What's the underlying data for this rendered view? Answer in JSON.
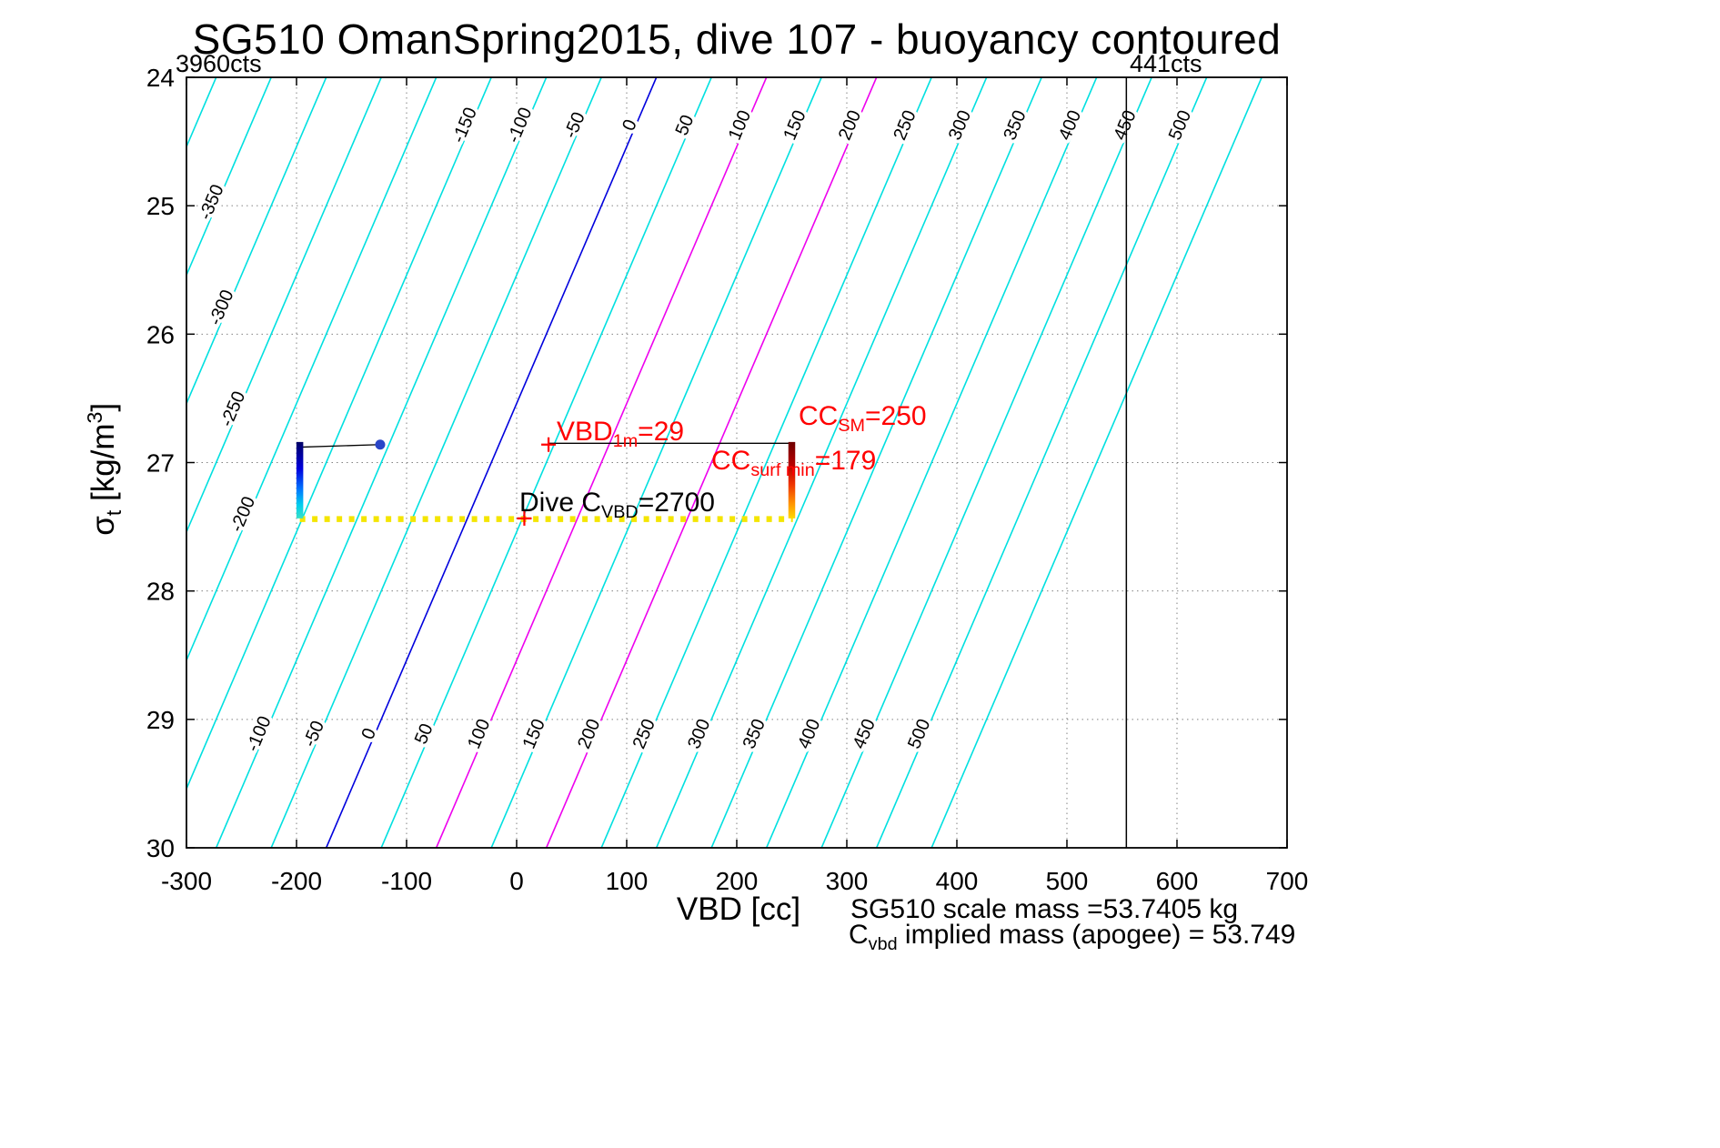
{
  "title": "SG510 OmanSpring2015, dive 107 - buoyancy contoured",
  "corner": {
    "left": "3960cts",
    "right": "441cts"
  },
  "axes": {
    "x_label": "VBD [cc]"
  },
  "ylabel": {
    "sigma": "σ",
    "sub": "t",
    "mid": " [kg/m",
    "sup": "3",
    "post": "]"
  },
  "annotations": {
    "vbd1m": {
      "pre": "VBD",
      "sub": "1m",
      "post": "=29"
    },
    "ccsm": {
      "pre": "CC",
      "sub": "SM",
      "post": "=250"
    },
    "ccsurf": {
      "pre": "CC",
      "sub": "surf min",
      "post": "=179"
    },
    "dive": {
      "pre": "Dive C",
      "sub": "VBD",
      "post": "=2700"
    }
  },
  "footer": {
    "line1": "SG510 scale mass =53.7405 kg",
    "line2": {
      "pre": "C",
      "sub": "vbd",
      "post": " implied mass (apogee) = 53.749"
    }
  },
  "chart_data": {
    "type": "line",
    "subtype": "buoyancy-contour-overlay",
    "title": "SG510 OmanSpring2015, dive 107 - buoyancy contoured",
    "xlabel": "VBD [cc]",
    "ylabel": "sigma_t [kg/m^3]",
    "x": {
      "min": -300,
      "max": 700,
      "ticks": [
        -300,
        -200,
        -100,
        0,
        100,
        200,
        300,
        400,
        500,
        600,
        700
      ]
    },
    "y": {
      "min": 24,
      "max": 30,
      "ticks": [
        24,
        25,
        26,
        27,
        28,
        29,
        30
      ],
      "inverted_axis": true
    },
    "grid": true,
    "contours": {
      "description": "straight buoyancy contour lines; VBD(sigma) = level + offset + slope*(sigma-24)",
      "model": {
        "offset": 127,
        "slope": -50
      },
      "colors": {
        "default": "#00e0e0",
        "0": "#0000dd",
        "100": "#ee00ee",
        "200": "#ee00ee"
      },
      "label_rotation_deg": -67,
      "levels": [
        {
          "c": -400,
          "label_sigmas": []
        },
        {
          "c": -350,
          "label_sigmas": [
            24.99
          ]
        },
        {
          "c": -300,
          "label_sigmas": [
            25.81
          ]
        },
        {
          "c": -250,
          "label_sigmas": [
            26.6
          ]
        },
        {
          "c": -200,
          "label_sigmas": [
            27.42
          ]
        },
        {
          "c": -150,
          "label_sigmas": [
            24.39
          ]
        },
        {
          "c": -100,
          "label_sigmas": [
            24.39,
            29.13
          ]
        },
        {
          "c": -50,
          "label_sigmas": [
            24.39,
            29.13
          ]
        },
        {
          "c": 0,
          "label_sigmas": [
            24.39,
            29.13
          ]
        },
        {
          "c": 50,
          "label_sigmas": [
            24.39,
            29.13
          ]
        },
        {
          "c": 100,
          "label_sigmas": [
            24.39,
            29.13
          ]
        },
        {
          "c": 150,
          "label_sigmas": [
            24.39,
            29.13
          ]
        },
        {
          "c": 200,
          "label_sigmas": [
            24.39,
            29.13
          ]
        },
        {
          "c": 250,
          "label_sigmas": [
            24.39,
            29.13
          ]
        },
        {
          "c": 300,
          "label_sigmas": [
            24.39,
            29.13
          ]
        },
        {
          "c": 350,
          "label_sigmas": [
            24.39,
            29.13
          ]
        },
        {
          "c": 400,
          "label_sigmas": [
            24.39,
            29.13
          ]
        },
        {
          "c": 450,
          "label_sigmas": [
            24.39,
            29.13
          ]
        },
        {
          "c": 500,
          "label_sigmas": [
            24.39,
            29.13
          ]
        },
        {
          "c": 550,
          "label_sigmas": []
        }
      ]
    },
    "series": {
      "climb_profile": {
        "vbd": -197,
        "sigma_range": [
          26.84,
          27.435
        ],
        "gradient": [
          [
            "0%",
            "#000066"
          ],
          [
            "35%",
            "#0000dd"
          ],
          [
            "62%",
            "#0077ff"
          ],
          [
            "82%",
            "#00cdee"
          ],
          [
            "100%",
            "#39e0c8"
          ]
        ]
      },
      "dive_profile": {
        "vbd": 250,
        "sigma_range": [
          26.84,
          27.435
        ],
        "gradient": [
          [
            "0%",
            "#6e0000"
          ],
          [
            "30%",
            "#b80000"
          ],
          [
            "55%",
            "#ee3300"
          ],
          [
            "80%",
            "#ff9100"
          ],
          [
            "100%",
            "#ffd900"
          ]
        ]
      },
      "surface_track": {
        "sigma": 27.44,
        "vbd_range": [
          -197,
          251
        ],
        "color": "#f4e500"
      },
      "apogee_point": {
        "vbd": -124,
        "sigma": 26.86,
        "color": "#2a46c8"
      },
      "connector_apogee": {
        "points": [
          [
            -197,
            26.88
          ],
          [
            -124,
            26.86
          ]
        ],
        "color": "#000000"
      },
      "connector_1m": {
        "sigma": 26.85,
        "vbd_range": [
          29,
          250
        ],
        "color": "#000000"
      },
      "plus_markers": {
        "color": "#ff0000",
        "points": [
          [
            29,
            26.86
          ],
          [
            7,
            27.435
          ]
        ]
      },
      "vbd_limit_line": {
        "vbd": 554,
        "color": "#000000"
      }
    },
    "key_values": {
      "VBD_1m_cc": 29,
      "CC_SM_cc": 250,
      "CC_surf_min_cc": 179,
      "dive_C_VBD_counts": 2700,
      "scale_mass_kg": 53.7405,
      "implied_mass_apogee_kg": 53.749,
      "counts_left": "3960cts",
      "counts_right": "441cts"
    }
  }
}
